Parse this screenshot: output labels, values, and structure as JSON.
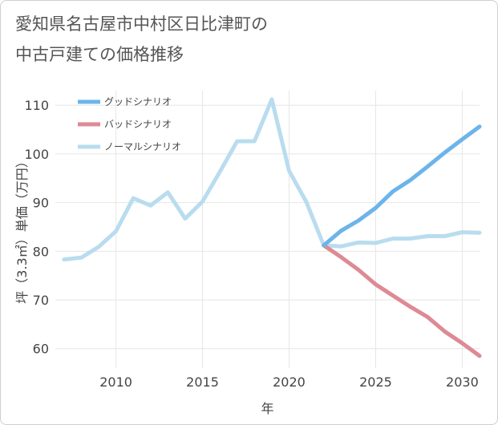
{
  "chart_data": {
    "type": "line",
    "title": "愛知県名古屋市中村区日比津町の\n中古戸建ての価格推移",
    "xlabel": "年",
    "ylabel": "坪（3.3㎡）単価（万円）",
    "xlim": [
      2006.5,
      2031
    ],
    "ylim": [
      56,
      113
    ],
    "xticks": [
      2010,
      2015,
      2020,
      2025,
      2030
    ],
    "yticks": [
      60,
      70,
      80,
      90,
      100,
      110
    ],
    "grid": true,
    "legend_position": "top-left",
    "series": [
      {
        "name": "グッドシナリオ",
        "color": "#6cb4ea",
        "x": [
          2022,
          2023,
          2024,
          2025,
          2026,
          2027,
          2028,
          2029,
          2030,
          2031
        ],
        "values": [
          81.2,
          84.2,
          86.3,
          88.9,
          92.3,
          94.6,
          97.4,
          100.3,
          103.0,
          105.6
        ]
      },
      {
        "name": "バッドシナリオ",
        "color": "#de8a94",
        "x": [
          2022,
          2023,
          2024,
          2025,
          2026,
          2027,
          2028,
          2029,
          2030,
          2031
        ],
        "values": [
          81.2,
          78.8,
          76.2,
          73.2,
          70.9,
          68.6,
          66.5,
          63.5,
          61.1,
          58.5
        ]
      },
      {
        "name": "ノーマルシナリオ",
        "color": "#b9dcef",
        "x": [
          2007,
          2008,
          2009,
          2010,
          2011,
          2012,
          2013,
          2014,
          2015,
          2016,
          2017,
          2018,
          2019,
          2020,
          2021,
          2022,
          2023,
          2024,
          2025,
          2026,
          2027,
          2028,
          2029,
          2030,
          2031
        ],
        "values": [
          78.3,
          78.7,
          80.9,
          84.1,
          90.9,
          89.4,
          92.1,
          86.7,
          90.2,
          96.3,
          102.6,
          102.6,
          111.2,
          96.5,
          90.1,
          81.2,
          81.0,
          81.8,
          81.7,
          82.6,
          82.6,
          83.1,
          83.1,
          83.9,
          83.8
        ]
      }
    ]
  }
}
